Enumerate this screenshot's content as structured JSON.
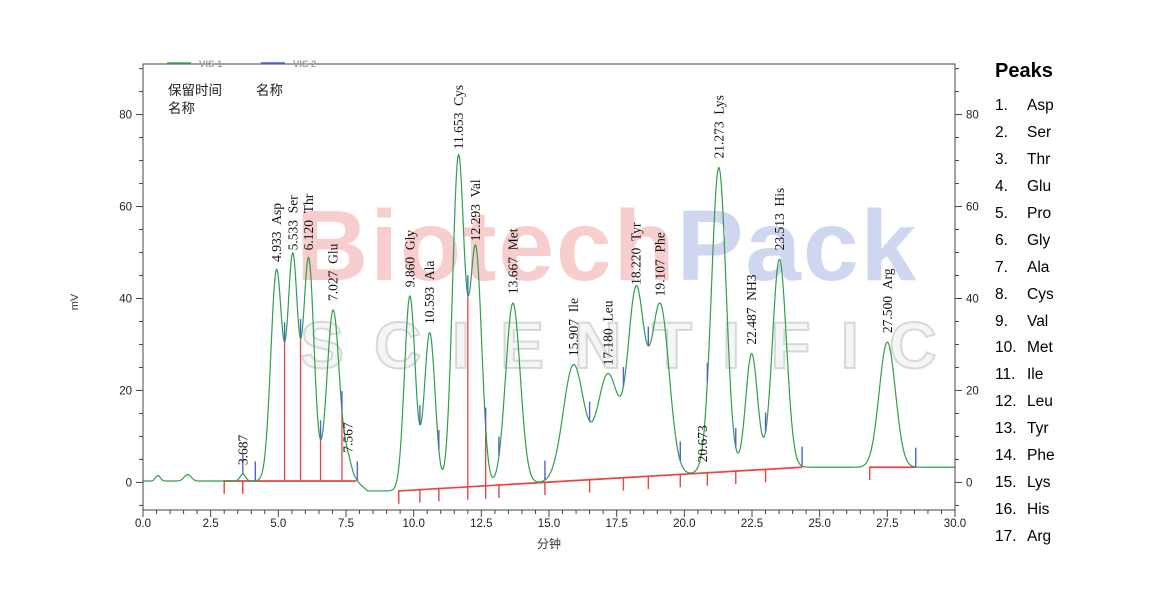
{
  "watermark": {
    "part1": "Biotech",
    "part2": "Pack",
    "line2": "SCIENTIFIC"
  },
  "peaks_panel": {
    "title": "Peaks",
    "items": [
      {
        "num": "1.",
        "name": "Asp"
      },
      {
        "num": "2.",
        "name": "Ser"
      },
      {
        "num": "3.",
        "name": "Thr"
      },
      {
        "num": "4.",
        "name": "Glu"
      },
      {
        "num": "5.",
        "name": "Pro"
      },
      {
        "num": "6.",
        "name": "Gly"
      },
      {
        "num": "7.",
        "name": "Ala"
      },
      {
        "num": "8.",
        "name": "Cys"
      },
      {
        "num": "9.",
        "name": "Val"
      },
      {
        "num": "10.",
        "name": "Met"
      },
      {
        "num": "11.",
        "name": "Ile"
      },
      {
        "num": "12.",
        "name": "Leu"
      },
      {
        "num": "13.",
        "name": "Tyr"
      },
      {
        "num": "14.",
        "name": "Phe"
      },
      {
        "num": "15.",
        "name": "Lys"
      },
      {
        "num": "16.",
        "name": "His"
      },
      {
        "num": "17.",
        "name": "Arg"
      }
    ]
  },
  "chart_data": {
    "type": "line",
    "title": "",
    "xlabel": "分钟",
    "ylabel": "mV",
    "legend": [
      {
        "label": "VIS 1",
        "color": "#3aa55c"
      },
      {
        "label": "VIS 2",
        "color": "#5560d0"
      }
    ],
    "legend_position": "top-left",
    "annotation_col1": [
      "保留时间",
      "名称"
    ],
    "annotation_col2": [
      "名称"
    ],
    "xlim": [
      0,
      30
    ],
    "ylim": [
      -6,
      91
    ],
    "x_major_tick_labels": [
      "0.0",
      "2.5",
      "5.0",
      "7.5",
      "10.0",
      "12.5",
      "15.0",
      "17.5",
      "20.0",
      "22.5",
      "25.0",
      "27.5",
      "30.0"
    ],
    "x_minor_step": 0.5,
    "y_major_ticks": [
      0,
      20,
      40,
      60,
      80
    ],
    "y_minor_step": 5,
    "grid": false,
    "y_axis_right_mirror": true,
    "colors": {
      "trace": "#2f9e4e",
      "marker_blue": "#5560d0",
      "marker_red": "#e84444",
      "axis": "#444444",
      "tick_label": "#222222",
      "legend_text": "#9aa0a6",
      "peak_label": "#111111"
    },
    "peaks": [
      {
        "rt_label": "3.687",
        "name": "",
        "apex_mV": 1.8,
        "sigma": 0.1
      },
      {
        "rt_label": "4.933",
        "name": "Asp",
        "apex_mV": 46.0,
        "sigma": 0.21
      },
      {
        "rt_label": "5.533",
        "name": "Ser",
        "apex_mV": 48.5,
        "sigma": 0.19
      },
      {
        "rt_label": "6.120",
        "name": "Thr",
        "apex_mV": 48.5,
        "sigma": 0.2
      },
      {
        "rt_label": "7.027",
        "name": "Glu",
        "apex_mV": 37.5,
        "sigma": 0.23
      },
      {
        "rt_label": "7.567",
        "name": "",
        "apex_mV": 4.5,
        "sigma": 0.15
      },
      {
        "rt_label": "9.860",
        "name": "Gly",
        "apex_mV": 40.5,
        "sigma": 0.2
      },
      {
        "rt_label": "10.593",
        "name": "Ala",
        "apex_mV": 32.5,
        "sigma": 0.2
      },
      {
        "rt_label": "11.653",
        "name": "Cys",
        "apex_mV": 70.5,
        "sigma": 0.22
      },
      {
        "rt_label": "12.293",
        "name": "Val",
        "apex_mV": 50.5,
        "sigma": 0.22
      },
      {
        "rt_label": "13.667",
        "name": "Met",
        "apex_mV": 39.0,
        "sigma": 0.27
      },
      {
        "rt_label": "15.907",
        "name": "Ile",
        "apex_mV": 25.5,
        "sigma": 0.38
      },
      {
        "rt_label": "17.180",
        "name": "Leu",
        "apex_mV": 23.5,
        "sigma": 0.4
      },
      {
        "rt_label": "18.220",
        "name": "Tyr",
        "apex_mV": 41.0,
        "sigma": 0.3
      },
      {
        "rt_label": "19.107",
        "name": "Phe",
        "apex_mV": 38.5,
        "sigma": 0.33
      },
      {
        "rt_label": "20.673",
        "name": "",
        "apex_mV": 2.4,
        "sigma": 0.2
      },
      {
        "rt_label": "21.273",
        "name": "Lys",
        "apex_mV": 68.5,
        "sigma": 0.27
      },
      {
        "rt_label": "22.487",
        "name": "NH3",
        "apex_mV": 28.0,
        "sigma": 0.22
      },
      {
        "rt_label": "23.513",
        "name": "His",
        "apex_mV": 48.5,
        "sigma": 0.26
      },
      {
        "rt_label": "27.500",
        "name": "Arg",
        "apex_mV": 30.5,
        "sigma": 0.3
      }
    ],
    "baseline_points": [
      [
        0,
        0.3
      ],
      [
        7.88,
        0.3
      ],
      [
        8.3,
        -1.85
      ],
      [
        9.45,
        -1.85
      ],
      [
        24.35,
        3.3
      ],
      [
        30,
        3.3
      ]
    ],
    "baseline_bumps": [
      {
        "rt": 0.55,
        "apex_mV": 1.5,
        "sigma": 0.09
      },
      {
        "rt": 1.65,
        "apex_mV": 1.7,
        "sigma": 0.13
      }
    ],
    "integration": {
      "segments": [
        [
          3.0,
          0.3,
          7.88,
          0.3
        ],
        [
          9.45,
          -1.85,
          24.35,
          3.3
        ],
        [
          26.85,
          3.3,
          28.55,
          3.3
        ]
      ],
      "red_ticks": [
        3.0,
        3.687,
        9.45,
        10.23,
        10.93,
        12.0,
        12.66,
        13.15,
        14.85,
        16.5,
        17.75,
        18.67,
        19.85,
        20.85,
        21.9,
        23.0,
        26.85
      ],
      "blue_ticks": [
        3.687,
        4.15,
        5.23,
        5.82,
        6.56,
        7.35,
        7.92,
        10.23,
        10.93,
        12.0,
        12.66,
        13.15,
        14.85,
        16.5,
        17.75,
        18.67,
        19.85,
        20.85,
        21.9,
        23.0,
        24.35,
        28.55
      ],
      "drop_lines": [
        5.23,
        5.82,
        6.56,
        7.35,
        12.0,
        12.66
      ]
    }
  }
}
